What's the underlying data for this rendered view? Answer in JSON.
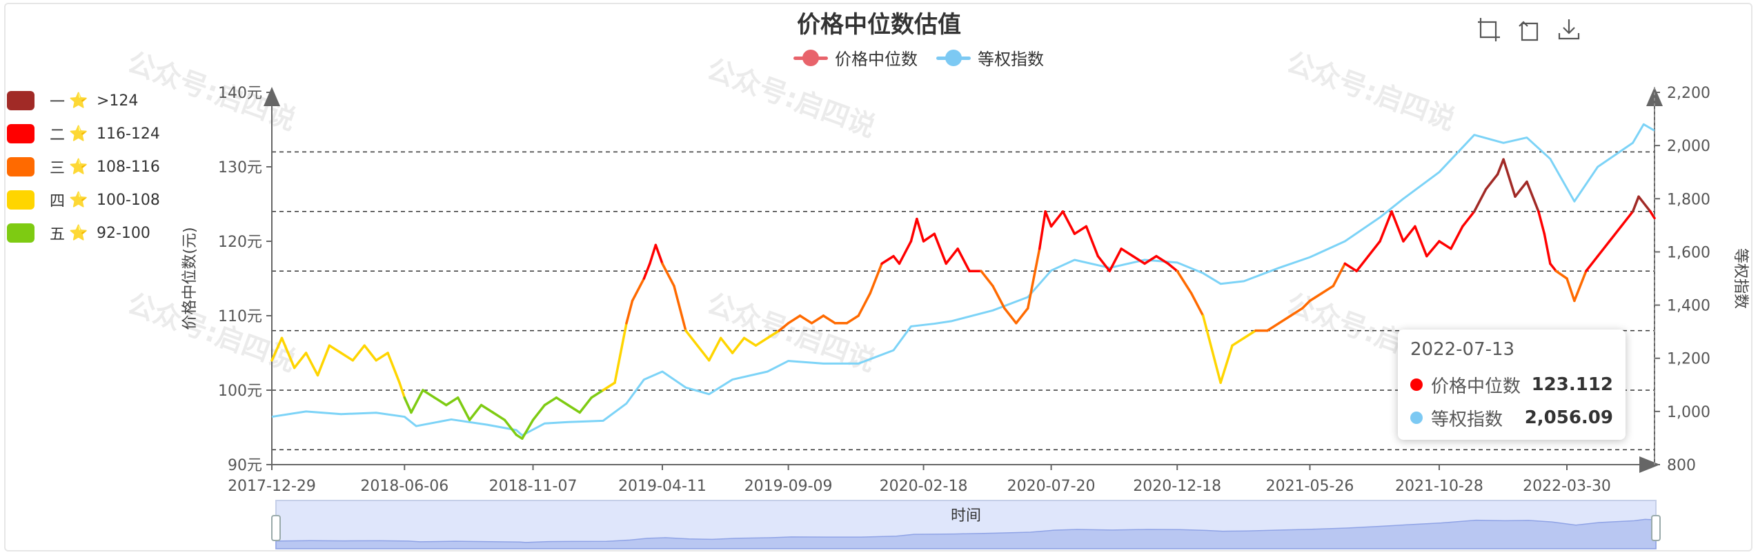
{
  "chart_data": {
    "type": "line",
    "title": "价格中位数估值",
    "legend": [
      {
        "name": "价格中位数",
        "color": "#e8636b"
      },
      {
        "name": "等权指数",
        "color": "#7cc9f3"
      }
    ],
    "x_ticks": [
      "2017-12-29",
      "2018-06-06",
      "2018-11-07",
      "2019-04-11",
      "2019-09-09",
      "2020-02-18",
      "2020-07-20",
      "2020-12-18",
      "2021-05-26",
      "2021-10-28",
      "2022-03-30"
    ],
    "y_left": {
      "label": "价格中位数(元)",
      "min": 90,
      "max": 140,
      "ticks": [
        "90元",
        "100元",
        "110元",
        "120元",
        "130元",
        "140元"
      ]
    },
    "y_right": {
      "label": "等权指数",
      "min": 800,
      "max": 2200,
      "ticks": [
        "800",
        "1,000",
        "1,200",
        "1,400",
        "1,600",
        "1,800",
        "2,000",
        "2,200"
      ]
    },
    "mark_lines": [
      92,
      100,
      108,
      116,
      124,
      132
    ],
    "series": [
      {
        "name": "价格中位数",
        "axis": "left",
        "points": [
          [
            "2017-12-29",
            104
          ],
          [
            "2018-01-10",
            107
          ],
          [
            "2018-01-25",
            103
          ],
          [
            "2018-02-08",
            105
          ],
          [
            "2018-02-22",
            102
          ],
          [
            "2018-03-08",
            106
          ],
          [
            "2018-03-22",
            105
          ],
          [
            "2018-04-05",
            104
          ],
          [
            "2018-04-19",
            106
          ],
          [
            "2018-05-03",
            104
          ],
          [
            "2018-05-17",
            105
          ],
          [
            "2018-05-31",
            101
          ],
          [
            "2018-06-06",
            99
          ],
          [
            "2018-06-14",
            97
          ],
          [
            "2018-06-28",
            100
          ],
          [
            "2018-07-12",
            99
          ],
          [
            "2018-07-26",
            98
          ],
          [
            "2018-08-09",
            99
          ],
          [
            "2018-08-23",
            96
          ],
          [
            "2018-09-06",
            98
          ],
          [
            "2018-09-20",
            97
          ],
          [
            "2018-10-04",
            96
          ],
          [
            "2018-10-18",
            94
          ],
          [
            "2018-10-25",
            93.5
          ],
          [
            "2018-11-07",
            96
          ],
          [
            "2018-11-21",
            98
          ],
          [
            "2018-12-05",
            99
          ],
          [
            "2018-12-19",
            98
          ],
          [
            "2019-01-02",
            97
          ],
          [
            "2019-01-16",
            99
          ],
          [
            "2019-01-30",
            100
          ],
          [
            "2019-02-13",
            101
          ],
          [
            "2019-02-27",
            109
          ],
          [
            "2019-03-06",
            112
          ],
          [
            "2019-03-20",
            115
          ],
          [
            "2019-03-27",
            117
          ],
          [
            "2019-04-03",
            119.5
          ],
          [
            "2019-04-11",
            117
          ],
          [
            "2019-04-25",
            114
          ],
          [
            "2019-05-09",
            108
          ],
          [
            "2019-05-23",
            106
          ],
          [
            "2019-06-06",
            104
          ],
          [
            "2019-06-20",
            107
          ],
          [
            "2019-07-04",
            105
          ],
          [
            "2019-07-18",
            107
          ],
          [
            "2019-08-01",
            106
          ],
          [
            "2019-08-15",
            107
          ],
          [
            "2019-08-29",
            108
          ],
          [
            "2019-09-09",
            109
          ],
          [
            "2019-09-23",
            110
          ],
          [
            "2019-10-07",
            109
          ],
          [
            "2019-10-21",
            110
          ],
          [
            "2019-11-04",
            109
          ],
          [
            "2019-11-18",
            109
          ],
          [
            "2019-12-02",
            110
          ],
          [
            "2019-12-16",
            113
          ],
          [
            "2019-12-30",
            117
          ],
          [
            "2020-01-13",
            118
          ],
          [
            "2020-01-20",
            117
          ],
          [
            "2020-02-03",
            120
          ],
          [
            "2020-02-10",
            123
          ],
          [
            "2020-02-18",
            120
          ],
          [
            "2020-03-02",
            121
          ],
          [
            "2020-03-16",
            117
          ],
          [
            "2020-03-30",
            119
          ],
          [
            "2020-04-13",
            116
          ],
          [
            "2020-04-27",
            116
          ],
          [
            "2020-05-11",
            114
          ],
          [
            "2020-05-25",
            111
          ],
          [
            "2020-06-08",
            109
          ],
          [
            "2020-06-22",
            111
          ],
          [
            "2020-07-06",
            119
          ],
          [
            "2020-07-13",
            124
          ],
          [
            "2020-07-20",
            122
          ],
          [
            "2020-08-03",
            124
          ],
          [
            "2020-08-17",
            121
          ],
          [
            "2020-08-31",
            122
          ],
          [
            "2020-09-14",
            118
          ],
          [
            "2020-09-28",
            116
          ],
          [
            "2020-10-12",
            119
          ],
          [
            "2020-10-26",
            118
          ],
          [
            "2020-11-09",
            117
          ],
          [
            "2020-11-23",
            118
          ],
          [
            "2020-12-07",
            117
          ],
          [
            "2020-12-18",
            116
          ],
          [
            "2021-01-04",
            113
          ],
          [
            "2021-01-18",
            110
          ],
          [
            "2021-02-01",
            104
          ],
          [
            "2021-02-08",
            101
          ],
          [
            "2021-02-22",
            106
          ],
          [
            "2021-03-08",
            107
          ],
          [
            "2021-03-22",
            108
          ],
          [
            "2021-04-05",
            108
          ],
          [
            "2021-04-19",
            109
          ],
          [
            "2021-05-03",
            110
          ],
          [
            "2021-05-17",
            111
          ],
          [
            "2021-05-26",
            112
          ],
          [
            "2021-06-09",
            113
          ],
          [
            "2021-06-23",
            114
          ],
          [
            "2021-07-07",
            117
          ],
          [
            "2021-07-21",
            116
          ],
          [
            "2021-08-04",
            118
          ],
          [
            "2021-08-18",
            120
          ],
          [
            "2021-09-01",
            124
          ],
          [
            "2021-09-15",
            120
          ],
          [
            "2021-09-29",
            122
          ],
          [
            "2021-10-13",
            118
          ],
          [
            "2021-10-28",
            120
          ],
          [
            "2021-11-11",
            119
          ],
          [
            "2021-11-25",
            122
          ],
          [
            "2021-12-09",
            124
          ],
          [
            "2021-12-23",
            127
          ],
          [
            "2022-01-06",
            129
          ],
          [
            "2022-01-13",
            131
          ],
          [
            "2022-01-27",
            126
          ],
          [
            "2022-02-10",
            128
          ],
          [
            "2022-02-24",
            124
          ],
          [
            "2022-03-03",
            121
          ],
          [
            "2022-03-10",
            117
          ],
          [
            "2022-03-17",
            116
          ],
          [
            "2022-03-30",
            115
          ],
          [
            "2022-04-08",
            112
          ],
          [
            "2022-04-22",
            116
          ],
          [
            "2022-05-06",
            118
          ],
          [
            "2022-05-20",
            120
          ],
          [
            "2022-06-03",
            122
          ],
          [
            "2022-06-17",
            124
          ],
          [
            "2022-06-24",
            126
          ],
          [
            "2022-07-08",
            124
          ],
          [
            "2022-07-13",
            123.112
          ]
        ]
      },
      {
        "name": "等权指数",
        "axis": "right",
        "points": [
          [
            "2017-12-29",
            980
          ],
          [
            "2018-02-08",
            1000
          ],
          [
            "2018-03-22",
            990
          ],
          [
            "2018-05-03",
            995
          ],
          [
            "2018-06-06",
            980
          ],
          [
            "2018-06-20",
            945
          ],
          [
            "2018-08-01",
            970
          ],
          [
            "2018-09-13",
            950
          ],
          [
            "2018-10-18",
            930
          ],
          [
            "2018-10-25",
            910
          ],
          [
            "2018-11-21",
            955
          ],
          [
            "2018-12-19",
            960
          ],
          [
            "2019-01-30",
            965
          ],
          [
            "2019-02-27",
            1030
          ],
          [
            "2019-03-20",
            1120
          ],
          [
            "2019-04-11",
            1150
          ],
          [
            "2019-05-09",
            1090
          ],
          [
            "2019-06-06",
            1065
          ],
          [
            "2019-07-04",
            1120
          ],
          [
            "2019-08-15",
            1150
          ],
          [
            "2019-09-09",
            1190
          ],
          [
            "2019-10-21",
            1180
          ],
          [
            "2019-12-02",
            1180
          ],
          [
            "2020-01-13",
            1230
          ],
          [
            "2020-02-03",
            1320
          ],
          [
            "2020-03-02",
            1330
          ],
          [
            "2020-03-23",
            1340
          ],
          [
            "2020-05-11",
            1380
          ],
          [
            "2020-06-22",
            1430
          ],
          [
            "2020-07-20",
            1530
          ],
          [
            "2020-08-17",
            1570
          ],
          [
            "2020-09-28",
            1540
          ],
          [
            "2020-11-09",
            1570
          ],
          [
            "2020-12-18",
            1560
          ],
          [
            "2021-01-18",
            1520
          ],
          [
            "2021-02-08",
            1480
          ],
          [
            "2021-03-08",
            1490
          ],
          [
            "2021-04-19",
            1540
          ],
          [
            "2021-05-26",
            1580
          ],
          [
            "2021-07-07",
            1640
          ],
          [
            "2021-08-18",
            1730
          ],
          [
            "2021-09-15",
            1800
          ],
          [
            "2021-10-28",
            1900
          ],
          [
            "2021-12-09",
            2040
          ],
          [
            "2022-01-13",
            2010
          ],
          [
            "2022-02-10",
            2030
          ],
          [
            "2022-03-10",
            1950
          ],
          [
            "2022-04-08",
            1790
          ],
          [
            "2022-05-06",
            1920
          ],
          [
            "2022-06-17",
            2010
          ],
          [
            "2022-06-30",
            2080
          ],
          [
            "2022-07-13",
            2056.09
          ]
        ]
      }
    ],
    "visual_map": [
      {
        "rank": "一",
        "range": ">124",
        "color": "#a12a26",
        "min": 124,
        "max": 999
      },
      {
        "rank": "二",
        "range": "116-124",
        "color": "#ff0000",
        "min": 116,
        "max": 124
      },
      {
        "rank": "三",
        "range": "108-116",
        "color": "#ff6a00",
        "min": 108,
        "max": 116
      },
      {
        "rank": "四",
        "range": "100-108",
        "color": "#ffd500",
        "min": 100,
        "max": 108
      },
      {
        "rank": "五",
        "range": "92-100",
        "color": "#7ecb12",
        "min": 92,
        "max": 100
      }
    ],
    "tooltip": {
      "date": "2022-07-13",
      "rows": [
        {
          "name": "价格中位数",
          "value": "123.112",
          "color": "#ff0000"
        },
        {
          "name": "等权指数",
          "value": "2,056.09",
          "color": "#7cc9f3"
        }
      ]
    },
    "xlabel": "时间"
  },
  "ui": {
    "star": "⭐",
    "watermark": "公众号:启四说",
    "icons": [
      "zoom-area-icon",
      "zoom-reset-icon",
      "save-image-icon"
    ]
  }
}
